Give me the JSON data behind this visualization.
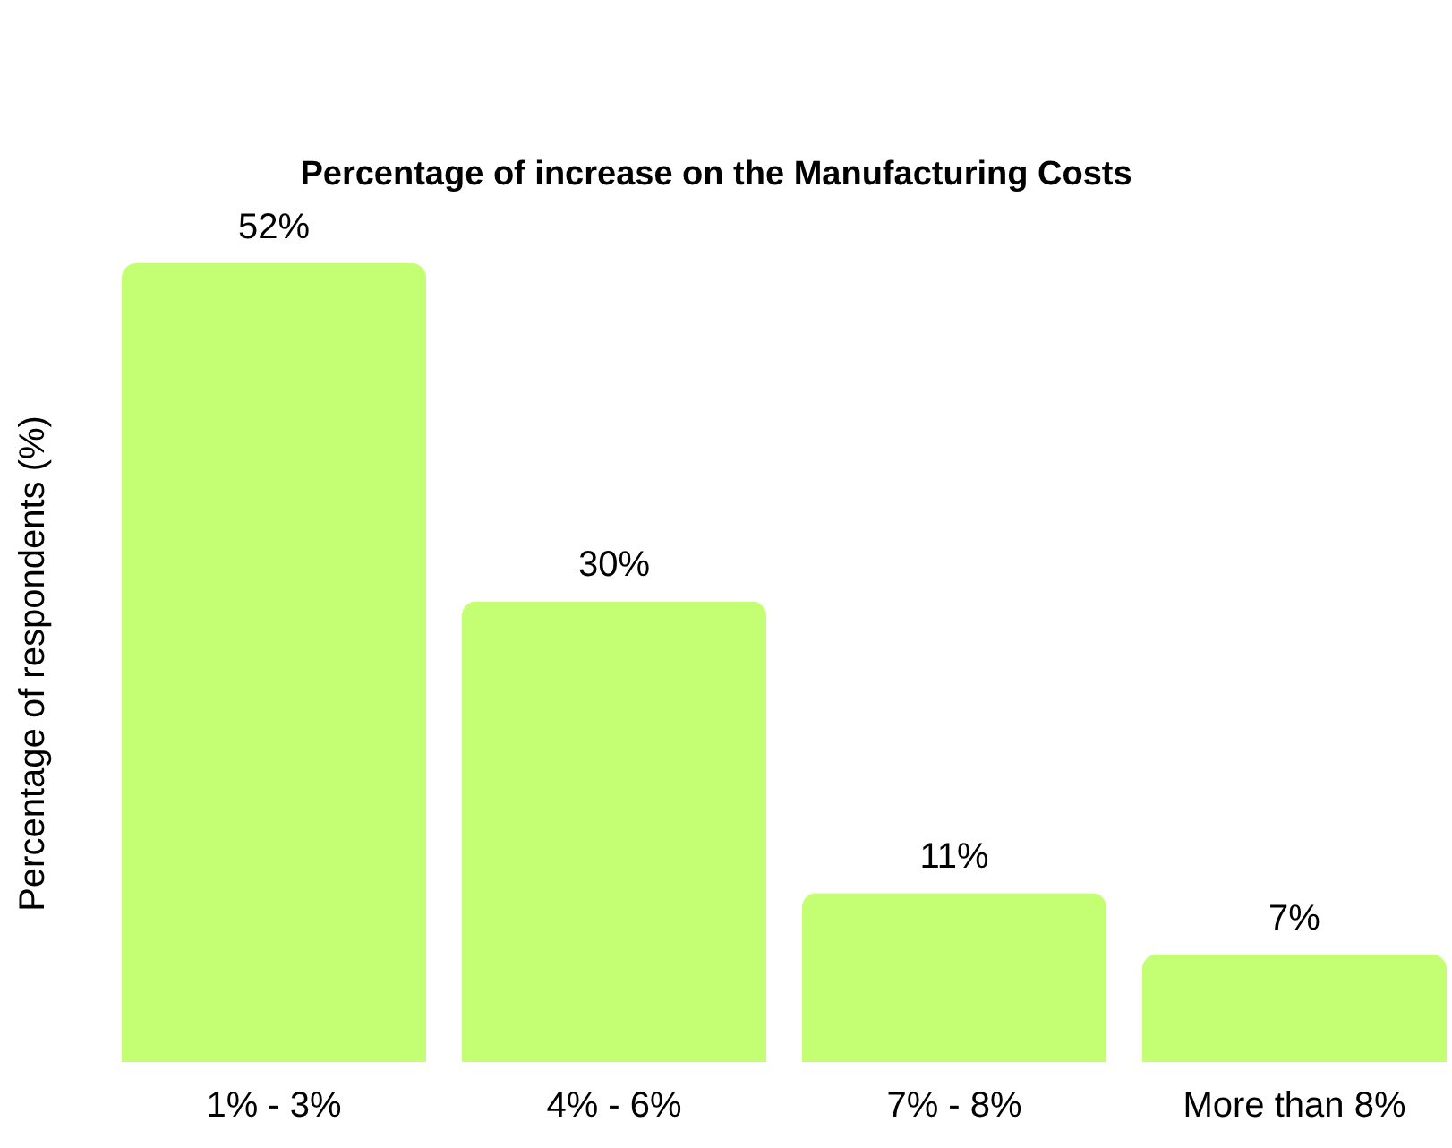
{
  "chart_data": {
    "type": "bar",
    "title": "Percentage of increase on the Manufacturing Costs",
    "ylabel": "Percentage of respondents (%)",
    "categories": [
      "1% - 3%",
      "4% - 6%",
      "7% - 8%",
      "More than 8%"
    ],
    "values": [
      52,
      30,
      11,
      7
    ],
    "value_labels": [
      "52%",
      "30%",
      "11%",
      "7%"
    ],
    "color": "#c4ff73"
  }
}
